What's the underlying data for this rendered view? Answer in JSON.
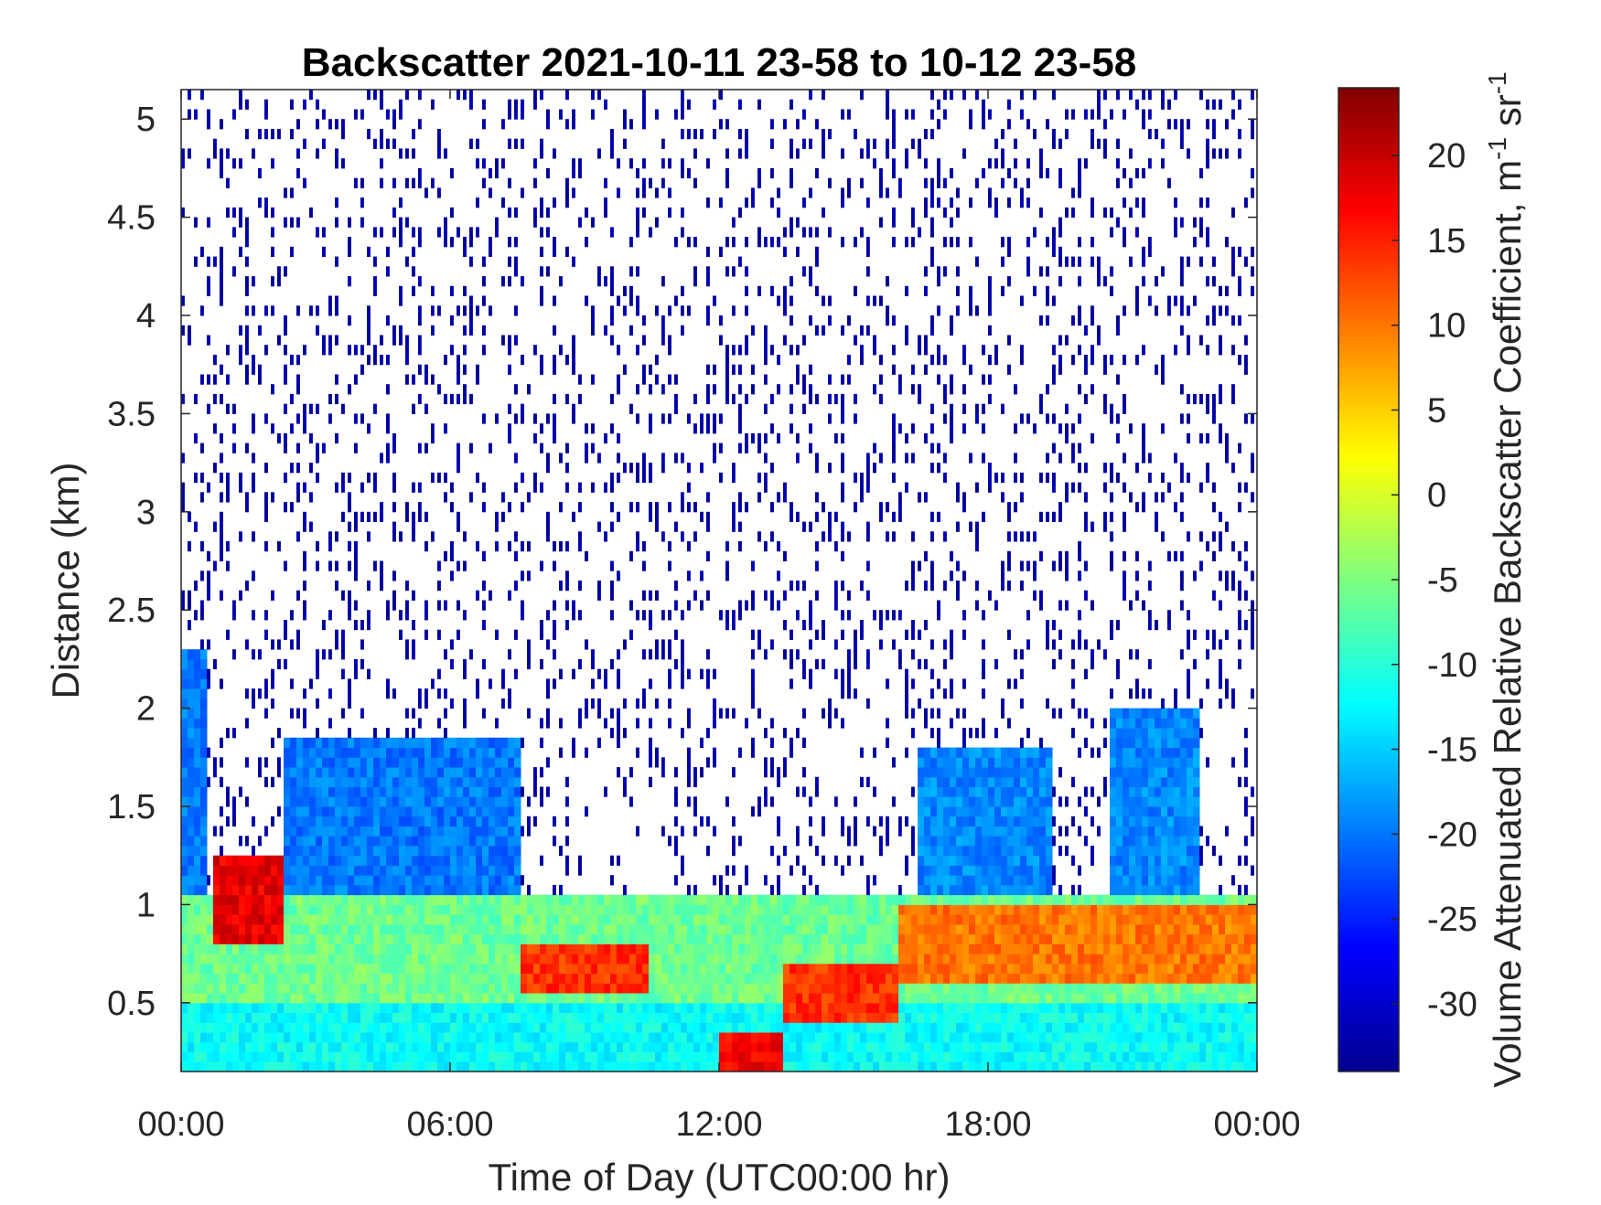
{
  "chart_data": {
    "type": "heatmap",
    "title": "Backscatter 2021-10-11 23-58 to 10-12 23-58",
    "xlabel": "Time of Day (UTC00:00 hr)",
    "ylabel": "Distance (km)",
    "colorbar_label": "Volume Attenuated Relative Backscatter Coefficient, m",
    "colorbar_label_unit_1": "-1",
    "colorbar_label_unit_2": "sr",
    "colorbar_label_unit_3": "-1",
    "xlim": [
      0,
      24
    ],
    "ylim": [
      0.15,
      5.15
    ],
    "clim": [
      -34,
      24
    ],
    "colormap": "jet",
    "x_ticks": [
      {
        "value": 0,
        "label": "00:00"
      },
      {
        "value": 6,
        "label": "06:00"
      },
      {
        "value": 12,
        "label": "12:00"
      },
      {
        "value": 18,
        "label": "18:00"
      },
      {
        "value": 24,
        "label": "00:00"
      }
    ],
    "y_ticks": [
      {
        "value": 0.5,
        "label": "0.5"
      },
      {
        "value": 1,
        "label": "1"
      },
      {
        "value": 1.5,
        "label": "1.5"
      },
      {
        "value": 2,
        "label": "2"
      },
      {
        "value": 2.5,
        "label": "2.5"
      },
      {
        "value": 3,
        "label": "3"
      },
      {
        "value": 3.5,
        "label": "3.5"
      },
      {
        "value": 4,
        "label": "4"
      },
      {
        "value": 4.5,
        "label": "4.5"
      },
      {
        "value": 5,
        "label": "5"
      }
    ],
    "colorbar_ticks": [
      {
        "value": 20,
        "label": "20"
      },
      {
        "value": 15,
        "label": "15"
      },
      {
        "value": 10,
        "label": "10"
      },
      {
        "value": 5,
        "label": "5"
      },
      {
        "value": 0,
        "label": "0"
      },
      {
        "value": -5,
        "label": "-5"
      },
      {
        "value": -10,
        "label": "-10"
      },
      {
        "value": -15,
        "label": "-15"
      },
      {
        "value": -20,
        "label": "-20"
      },
      {
        "value": -25,
        "label": "-25"
      },
      {
        "value": -30,
        "label": "-30"
      }
    ],
    "layers": [
      {
        "x_range": [
          0,
          24
        ],
        "y_range": [
          0.15,
          0.5
        ],
        "value": -12
      },
      {
        "x_range": [
          0,
          24
        ],
        "y_range": [
          0.5,
          1.05
        ],
        "value": -6
      },
      {
        "x_range": [
          0,
          0.6
        ],
        "y_range": [
          1.05,
          2.3
        ],
        "value": -20
      },
      {
        "x_range": [
          2.3,
          7.6
        ],
        "y_range": [
          1.05,
          1.85
        ],
        "value": -20
      },
      {
        "x_range": [
          0.7,
          2.3
        ],
        "y_range": [
          0.8,
          1.25
        ],
        "value": 18
      },
      {
        "x_range": [
          7.6,
          10.5
        ],
        "y_range": [
          0.55,
          0.8
        ],
        "value": 14
      },
      {
        "x_range": [
          12.0,
          13.4
        ],
        "y_range": [
          0.15,
          0.35
        ],
        "value": 17
      },
      {
        "x_range": [
          13.4,
          16.0
        ],
        "y_range": [
          0.4,
          0.7
        ],
        "value": 14
      },
      {
        "x_range": [
          16.0,
          24
        ],
        "y_range": [
          0.6,
          1.0
        ],
        "value": 10
      },
      {
        "x_range": [
          16.5,
          19.4
        ],
        "y_range": [
          1.05,
          1.8
        ],
        "value": -19
      },
      {
        "x_range": [
          20.7,
          22.7
        ],
        "y_range": [
          1.05,
          2.0
        ],
        "value": -19
      },
      {
        "x_range": [
          0,
          24
        ],
        "y_range": [
          0.9,
          5.15
        ],
        "value": -32,
        "pattern": "sparse"
      }
    ]
  }
}
